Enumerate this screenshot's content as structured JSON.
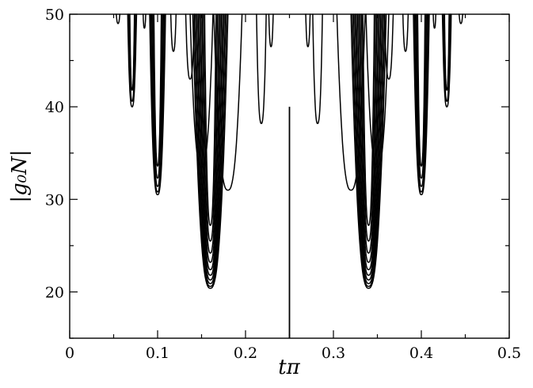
{
  "chart_data": {
    "type": "line",
    "title": "",
    "xlabel": "tπ",
    "ylabel": "|g₀N|",
    "xlim": [
      0,
      0.5
    ],
    "ylim": [
      15,
      50
    ],
    "x_ticks": [
      0,
      0.1,
      0.2,
      0.3,
      0.4,
      0.5
    ],
    "x_tick_labels": [
      "0",
      "0.1",
      "0.2",
      "0.3",
      "0.4",
      "0.5"
    ],
    "y_ticks": [
      20,
      30,
      40,
      50
    ],
    "y_tick_labels": [
      "20",
      "30",
      "40",
      "50"
    ],
    "grid": false,
    "legend": "none",
    "vertical_marker": {
      "x": 0.25,
      "y_from": 15,
      "y_to": 40
    },
    "series": [
      {
        "family": [
          {
            "center": 0.16,
            "halfwidth": 0.02,
            "min": 20.4
          },
          {
            "center": 0.16,
            "halfwidth": 0.0185,
            "min": 20.6
          },
          {
            "center": 0.16,
            "halfwidth": 0.017,
            "min": 20.9
          },
          {
            "center": 0.16,
            "halfwidth": 0.0155,
            "min": 21.3
          },
          {
            "center": 0.16,
            "halfwidth": 0.014,
            "min": 21.8
          },
          {
            "center": 0.16,
            "halfwidth": 0.0125,
            "min": 22.4
          },
          {
            "center": 0.16,
            "halfwidth": 0.011,
            "min": 23.2
          },
          {
            "center": 0.16,
            "halfwidth": 0.0095,
            "min": 24.2
          },
          {
            "center": 0.16,
            "halfwidth": 0.008,
            "min": 25.5
          },
          {
            "center": 0.16,
            "halfwidth": 0.0065,
            "min": 27.2
          }
        ]
      },
      {
        "family": [
          {
            "center": 0.34,
            "halfwidth": 0.02,
            "min": 20.4
          },
          {
            "center": 0.34,
            "halfwidth": 0.0185,
            "min": 20.6
          },
          {
            "center": 0.34,
            "halfwidth": 0.017,
            "min": 20.9
          },
          {
            "center": 0.34,
            "halfwidth": 0.0155,
            "min": 21.3
          },
          {
            "center": 0.34,
            "halfwidth": 0.014,
            "min": 21.8
          },
          {
            "center": 0.34,
            "halfwidth": 0.0125,
            "min": 22.4
          },
          {
            "center": 0.34,
            "halfwidth": 0.011,
            "min": 23.2
          },
          {
            "center": 0.34,
            "halfwidth": 0.0095,
            "min": 24.2
          },
          {
            "center": 0.34,
            "halfwidth": 0.008,
            "min": 25.5
          },
          {
            "center": 0.34,
            "halfwidth": 0.0065,
            "min": 27.2
          }
        ]
      },
      {
        "family": [
          {
            "center": 0.1,
            "halfwidth": 0.009,
            "min": 30.5
          },
          {
            "center": 0.1,
            "halfwidth": 0.0078,
            "min": 30.8
          },
          {
            "center": 0.1,
            "halfwidth": 0.0066,
            "min": 31.4
          },
          {
            "center": 0.1,
            "halfwidth": 0.0054,
            "min": 32.3
          },
          {
            "center": 0.1,
            "halfwidth": 0.0042,
            "min": 33.6
          }
        ]
      },
      {
        "family": [
          {
            "center": 0.4,
            "halfwidth": 0.009,
            "min": 30.5
          },
          {
            "center": 0.4,
            "halfwidth": 0.0078,
            "min": 30.8
          },
          {
            "center": 0.4,
            "halfwidth": 0.0066,
            "min": 31.4
          },
          {
            "center": 0.4,
            "halfwidth": 0.0054,
            "min": 32.3
          },
          {
            "center": 0.4,
            "halfwidth": 0.0042,
            "min": 33.6
          }
        ]
      },
      {
        "family": [
          {
            "center": 0.071,
            "halfwidth": 0.005,
            "min": 40.0
          },
          {
            "center": 0.071,
            "halfwidth": 0.0038,
            "min": 40.6
          },
          {
            "center": 0.071,
            "halfwidth": 0.0026,
            "min": 41.8
          }
        ]
      },
      {
        "family": [
          {
            "center": 0.429,
            "halfwidth": 0.005,
            "min": 40.0
          },
          {
            "center": 0.429,
            "halfwidth": 0.0038,
            "min": 40.6
          },
          {
            "center": 0.429,
            "halfwidth": 0.0026,
            "min": 41.8
          }
        ]
      },
      {
        "family": [
          {
            "center": 0.218,
            "halfwidth": 0.0055,
            "min": 38.2
          },
          {
            "center": 0.282,
            "halfwidth": 0.0055,
            "min": 38.2
          },
          {
            "center": 0.229,
            "halfwidth": 0.0025,
            "min": 46.5
          },
          {
            "center": 0.271,
            "halfwidth": 0.0025,
            "min": 46.5
          },
          {
            "center": 0.055,
            "halfwidth": 0.002,
            "min": 49.0
          },
          {
            "center": 0.445,
            "halfwidth": 0.002,
            "min": 49.0
          },
          {
            "center": 0.085,
            "halfwidth": 0.0015,
            "min": 48.5
          },
          {
            "center": 0.415,
            "halfwidth": 0.0015,
            "min": 48.5
          }
        ]
      },
      {
        "family": [
          {
            "center": 0.137,
            "halfwidth": 0.005,
            "min": 43.0
          },
          {
            "center": 0.363,
            "halfwidth": 0.005,
            "min": 43.0
          },
          {
            "center": 0.118,
            "halfwidth": 0.003,
            "min": 46.0
          },
          {
            "center": 0.382,
            "halfwidth": 0.003,
            "min": 46.0
          }
        ]
      },
      {
        "family": [
          {
            "center": 0.18,
            "halfwidth": 0.016,
            "min": 31.0
          },
          {
            "center": 0.32,
            "halfwidth": 0.016,
            "min": 31.0
          },
          {
            "center": 0.15,
            "halfwidth": 0.013,
            "min": 33.5
          },
          {
            "center": 0.35,
            "halfwidth": 0.013,
            "min": 33.5
          }
        ]
      }
    ]
  }
}
